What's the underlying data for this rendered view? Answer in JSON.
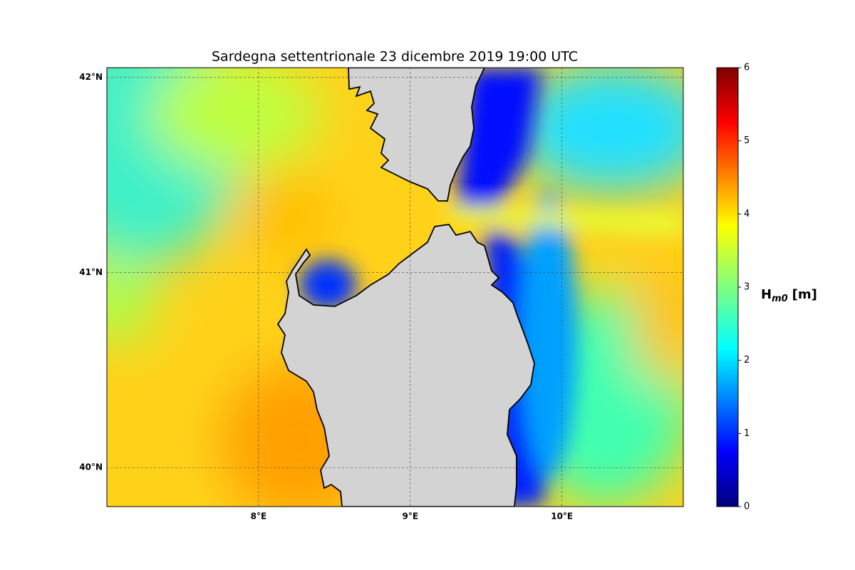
{
  "chart_data": {
    "type": "map",
    "title": "Sardegna settentrionale  23 dicembre 2019  19:00 UTC",
    "xlim": [
      7.0,
      10.8
    ],
    "ylim": [
      39.8,
      42.05
    ],
    "xticks": [
      {
        "value": 8,
        "label": "8°E"
      },
      {
        "value": 9,
        "label": "9°E"
      },
      {
        "value": 10,
        "label": "10°E"
      }
    ],
    "yticks": [
      {
        "value": 40,
        "label": "40°N"
      },
      {
        "value": 41,
        "label": "41°N"
      },
      {
        "value": 42,
        "label": "42°N"
      }
    ],
    "grid": true,
    "colorbar": {
      "label": {
        "main": "H",
        "sub": "m0",
        "unit": "[m]"
      },
      "clim": [
        0,
        6
      ],
      "ticks": [
        0,
        1,
        2,
        3,
        4,
        5,
        6
      ]
    }
  }
}
